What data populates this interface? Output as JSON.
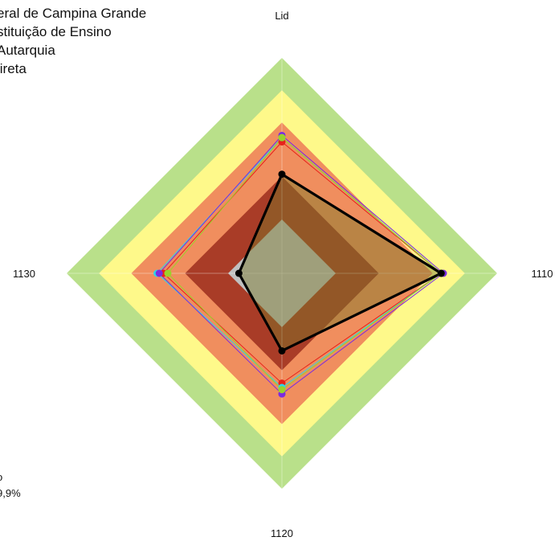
{
  "legend": {
    "lines": [
      "eral de Campina Grande",
      "stituição de Ensino",
      "Autarquia",
      "lireta"
    ]
  },
  "corner_note": {
    "line1": "o",
    "line2": "9,9%"
  },
  "chart_data": {
    "type": "radar",
    "axes": [
      "Lid",
      "1110",
      "1120",
      "1130"
    ],
    "range": [
      0,
      100
    ],
    "bands": [
      {
        "level": 25,
        "color": "#C0C0C0"
      },
      {
        "level": 45,
        "color": "#A93C27"
      },
      {
        "level": 70,
        "color": "#F08E5E"
      },
      {
        "level": 85,
        "color": "#FEF98A"
      },
      {
        "level": 100,
        "color": "#B9E08A"
      }
    ],
    "series": [
      {
        "color": "#000000",
        "values": [
          46,
          74,
          36,
          20
        ],
        "fill": "rgba(120,120,40,0.45)",
        "width": 3.2
      },
      {
        "color": "#E8221A",
        "values": [
          61,
          74,
          51,
          55
        ],
        "width": 1
      },
      {
        "color": "#2FD5E6",
        "values": [
          63,
          74,
          53,
          58
        ],
        "width": 1
      },
      {
        "color": "#7B2BE0",
        "values": [
          64,
          75,
          56,
          57
        ],
        "width": 1
      },
      {
        "color": "#9AD22A",
        "values": [
          63,
          74,
          54,
          53
        ],
        "width": 1
      }
    ]
  }
}
